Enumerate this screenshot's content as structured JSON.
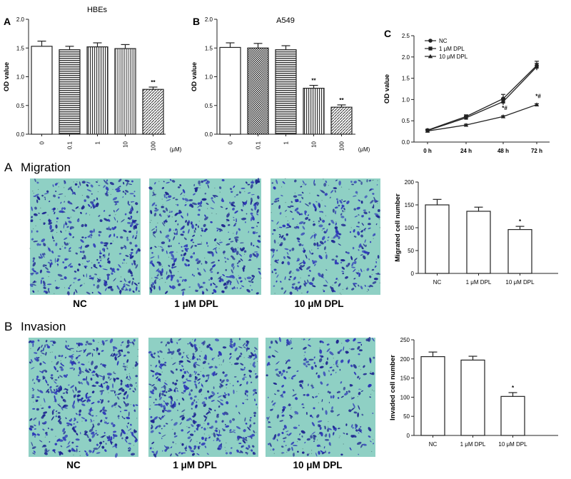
{
  "chart_data": [
    {
      "type": "bar",
      "panel": "A",
      "title": "HBEs",
      "ylabel": "OD value",
      "unit": "(μM)",
      "ylim": [
        0,
        2.0
      ],
      "yticks": [
        "0.0",
        "0.5",
        "1.0",
        "1.5",
        "2.0"
      ],
      "categories": [
        "0",
        "0.1",
        "1",
        "10",
        "100"
      ],
      "values": [
        1.53,
        1.47,
        1.52,
        1.49,
        0.78
      ],
      "errors": [
        0.09,
        0.06,
        0.07,
        0.07,
        0.04
      ],
      "significance": [
        "",
        "",
        "",
        "",
        "**"
      ]
    },
    {
      "type": "bar",
      "panel": "B",
      "title": "A549",
      "ylabel": "OD value",
      "unit": "(μM)",
      "ylim": [
        0,
        2.0
      ],
      "yticks": [
        "0.0",
        "0.5",
        "1.0",
        "1.5",
        "2.0"
      ],
      "categories": [
        "0",
        "0.1",
        "1",
        "10",
        "100"
      ],
      "values": [
        1.51,
        1.5,
        1.47,
        0.8,
        0.47
      ],
      "errors": [
        0.08,
        0.08,
        0.07,
        0.05,
        0.04
      ],
      "significance": [
        "",
        "",
        "",
        "**",
        "**"
      ]
    },
    {
      "type": "line",
      "panel": "C",
      "ylabel": "OD value",
      "ylim": [
        0,
        2.5
      ],
      "yticks": [
        "0.0",
        "0.5",
        "1.0",
        "1.5",
        "2.0",
        "2.5"
      ],
      "x": [
        "0 h",
        "24 h",
        "48 h",
        "72 h"
      ],
      "legend_position": "top-left",
      "series": [
        {
          "name": "NC",
          "marker": "circle",
          "values": [
            0.28,
            0.6,
            1.02,
            1.8
          ],
          "errors": [
            0.02,
            0.04,
            0.1,
            0.1
          ]
        },
        {
          "name": "1 μM DPL",
          "marker": "square",
          "values": [
            0.27,
            0.57,
            0.95,
            1.77
          ],
          "errors": [
            0.02,
            0.04,
            0.08,
            0.08
          ]
        },
        {
          "name": "10 μM DPL",
          "marker": "triangle",
          "values": [
            0.26,
            0.4,
            0.6,
            0.88
          ],
          "errors": [
            0.02,
            0.02,
            0.02,
            0.02
          ]
        }
      ],
      "annotations": [
        {
          "x": "48 h",
          "label": "*#"
        },
        {
          "x": "72 h",
          "label": "*#"
        }
      ]
    },
    {
      "type": "bar",
      "panel": "Migration",
      "ylabel": "Migrated cell number",
      "ylim": [
        0,
        200
      ],
      "yticks": [
        "0",
        "50",
        "100",
        "150",
        "200"
      ],
      "categories": [
        "NC",
        "1 μM DPL",
        "10 μM DPL"
      ],
      "values": [
        150,
        136,
        96
      ],
      "errors": [
        12,
        9,
        7
      ],
      "significance": [
        "",
        "",
        "*"
      ]
    },
    {
      "type": "bar",
      "panel": "Invasion",
      "ylabel": "Invaded cell number",
      "ylim": [
        0,
        250
      ],
      "yticks": [
        "0",
        "50",
        "100",
        "150",
        "200",
        "250"
      ],
      "categories": [
        "NC",
        "1 μM DPL",
        "10 μM DPL"
      ],
      "values": [
        206,
        197,
        102
      ],
      "errors": [
        12,
        10,
        10
      ],
      "significance": [
        "",
        "",
        "*"
      ]
    }
  ],
  "panel_labels": {
    "a": "A",
    "b": "B",
    "c": "C",
    "mig_letter": "A",
    "inv_letter": "B"
  },
  "section_titles": {
    "migration": "Migration",
    "invasion": "Invasion"
  },
  "image_labels": {
    "migration": [
      "NC",
      "1 μM DPL",
      "10 μM DPL"
    ],
    "invasion": [
      "NC",
      "1 μM DPL",
      "10 μM DPL"
    ]
  },
  "colors": {
    "stain": "#2c36b8",
    "background": "#8fd0c4",
    "bar_dark": "#333333"
  }
}
